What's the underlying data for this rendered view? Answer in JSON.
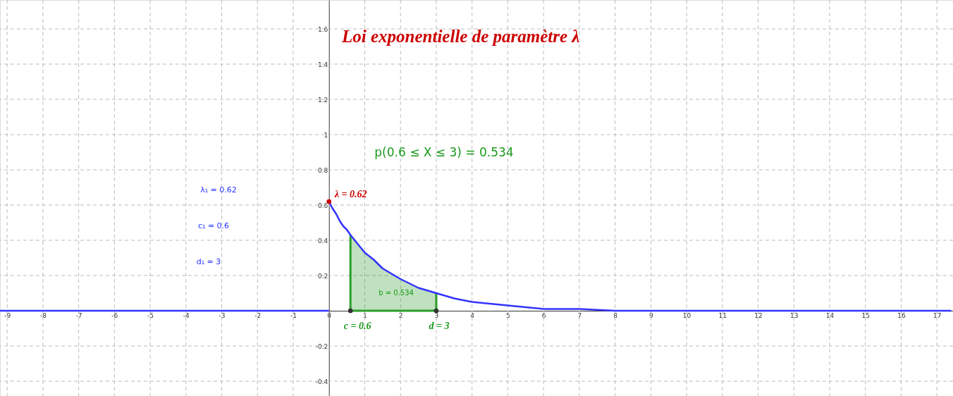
{
  "chart_data": {
    "type": "line",
    "title": "Loi exponentielle de paramètre λ",
    "annotations": [
      "p(0.6 ≤ X ≤ 3) = 0.534",
      "λ₁ = 0.62",
      "c₁ = 0.6",
      "d₁ = 3",
      {
        "text": "λ = 0.62",
        "x": 0,
        "y": 0.62
      },
      {
        "text": "c = 0.6",
        "x": 0.6,
        "y": 0
      },
      {
        "text": "d = 3",
        "x": 3,
        "y": 0
      },
      "b = 0.534"
    ],
    "series": [
      {
        "color": "#3333ff",
        "x": [
          -9.2,
          0
        ],
        "values": [
          0,
          0
        ]
      },
      {
        "color": "#3333ff",
        "x": [
          0,
          0.1,
          0.2,
          0.3,
          0.4,
          0.5,
          0.6,
          0.8,
          1,
          1.25,
          1.5,
          1.75,
          2,
          2.5,
          3,
          3.5,
          4,
          4.5,
          5,
          6,
          7,
          8,
          10,
          12,
          17.4
        ],
        "values": [
          0.62,
          0.58,
          0.55,
          0.51,
          0.48,
          0.46,
          0.43,
          0.38,
          0.33,
          0.29,
          0.24,
          0.21,
          0.18,
          0.13,
          0.1,
          0.07,
          0.05,
          0.04,
          0.03,
          0.01,
          0.01,
          0,
          0,
          0,
          0
        ]
      },
      {
        "type": "area",
        "color": "#2a9d2a",
        "x": [
          0.6,
          0.8,
          1,
          1.25,
          1.5,
          1.75,
          2,
          2.5,
          3
        ],
        "values": [
          0.43,
          0.38,
          0.33,
          0.29,
          0.24,
          0.21,
          0.18,
          0.13,
          0.1
        ]
      },
      {
        "type": "scatter",
        "color": "#cc0000",
        "marker": "circle",
        "x": [
          0
        ],
        "values": [
          0.62
        ]
      },
      {
        "type": "scatter",
        "color": "#333333",
        "marker": "circle",
        "x": [
          0.6,
          3
        ],
        "values": [
          0,
          0
        ]
      }
    ],
    "xlim": [
      -9.2,
      17.45
    ],
    "ylim": [
      -0.484,
      1.764
    ],
    "xticks": [
      -9,
      -8,
      -7,
      -6,
      -5,
      -4,
      -3,
      -2,
      -1,
      0,
      1,
      2,
      3,
      4,
      5,
      6,
      7,
      8,
      9,
      10,
      11,
      12,
      13,
      14,
      15,
      16,
      17
    ],
    "yticks": [
      -0.4,
      -0.2,
      0.2,
      0.4,
      0.6,
      0.8,
      1,
      1.2,
      1.4,
      1.6
    ],
    "grid": true,
    "line_style": "solid"
  }
}
